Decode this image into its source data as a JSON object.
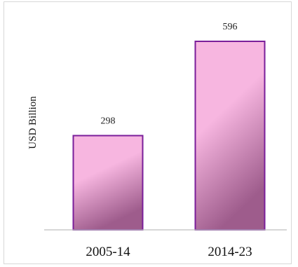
{
  "chart_data": {
    "type": "bar",
    "title": "",
    "xlabel": "",
    "ylabel": "USD Billion",
    "categories": [
      "2005-14",
      "2014-23"
    ],
    "values": [
      298,
      596
    ],
    "data_labels": [
      "298",
      "596"
    ],
    "ylim": [
      0,
      596
    ],
    "grid": false,
    "legend": "none",
    "bar_fill_top": "#f7b6e0",
    "bar_fill_bottom": "#9e5c8c",
    "bar_stroke": "#7a1e9a",
    "axis_color": "#bfbfbf"
  }
}
